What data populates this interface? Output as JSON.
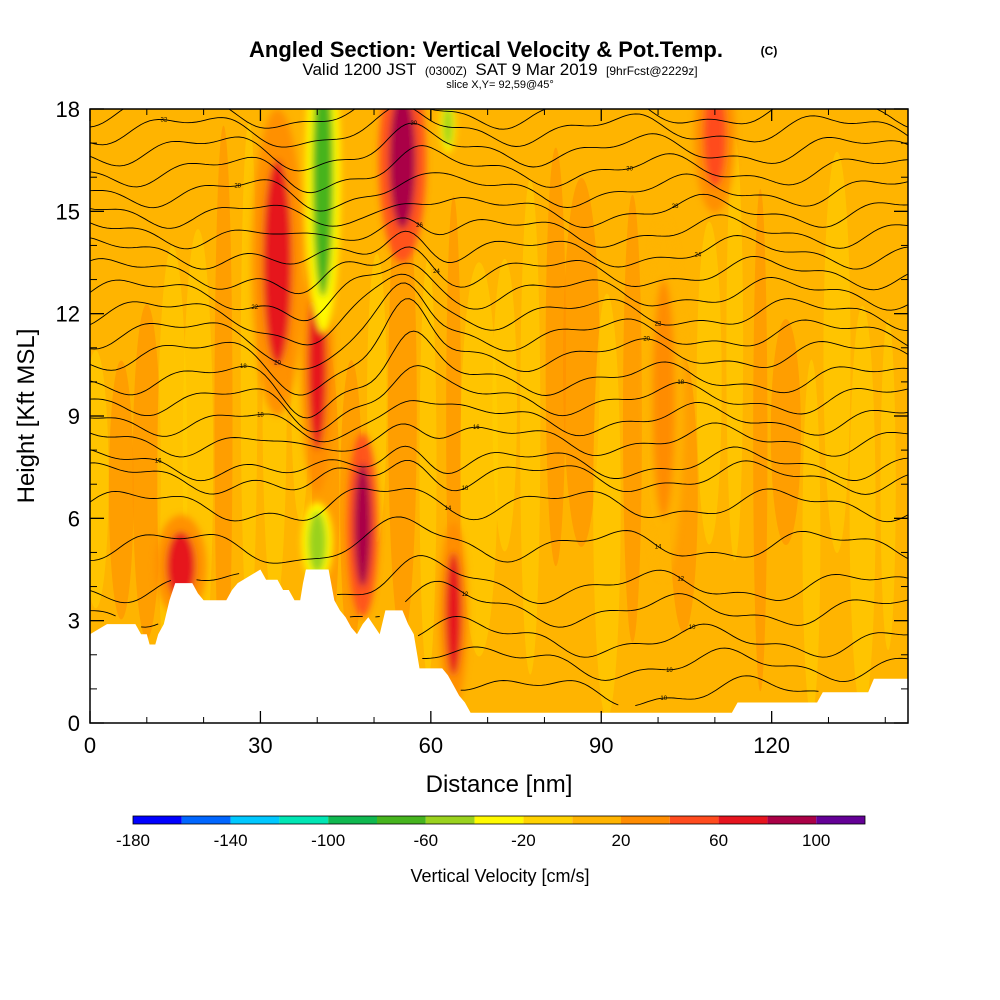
{
  "chart_data": {
    "type": "heatmap",
    "title": "Angled Section: Vertical Velocity & Pot.Temp.",
    "title_units": "(C)",
    "subtitle_parts": [
      "Valid 1200 JST",
      "(0300Z)",
      "SAT 9 Mar 2019",
      "[9hrFcst@2229z]"
    ],
    "slice_label": "slice X,Y= 92,59@45°",
    "xlabel": "Distance [nm]",
    "ylabel": "Height [Kft MSL]",
    "xlim": [
      0,
      144
    ],
    "ylim": [
      0,
      18
    ],
    "x_ticks": [
      "0",
      "30",
      "60",
      "90",
      "120"
    ],
    "x_tick_values": [
      0,
      30,
      60,
      90,
      120
    ],
    "y_ticks": [
      "0",
      "3",
      "6",
      "9",
      "12",
      "15",
      "18"
    ],
    "y_tick_values": [
      0,
      3,
      6,
      9,
      12,
      15,
      18
    ],
    "colorbar": {
      "title": "Vertical Velocity [cm/s]",
      "range": [
        -180,
        120
      ],
      "tick_labels": [
        "-180",
        "-140",
        "-100",
        "-60",
        "-20",
        "20",
        "60",
        "100"
      ],
      "tick_values": [
        -180,
        -140,
        -100,
        -60,
        -20,
        20,
        60,
        100
      ],
      "colors": [
        "#0000ff",
        "#0066ff",
        "#00c8ff",
        "#00e6b4",
        "#10b850",
        "#46b41e",
        "#9ad21e",
        "#fffa00",
        "#ffd200",
        "#ffb400",
        "#ff8c00",
        "#ff4b1e",
        "#e6141e",
        "#aa0046",
        "#640096"
      ]
    },
    "updrafts": [
      {
        "x": 16,
        "z": 4.6,
        "value": 70
      },
      {
        "x": 33,
        "z": 13.5,
        "value": 60
      },
      {
        "x": 40,
        "z": 10.5,
        "value": 75
      },
      {
        "x": 48,
        "z": 5.8,
        "value": 80
      },
      {
        "x": 55,
        "z": 16.5,
        "value": 85
      },
      {
        "x": 64,
        "z": 3.2,
        "value": 60
      },
      {
        "x": 101,
        "z": 9.5,
        "value": 35
      },
      {
        "x": 110,
        "z": 17.2,
        "value": 40
      }
    ],
    "downdrafts": [
      {
        "x": 41,
        "z": 16,
        "value": -70
      },
      {
        "x": 40,
        "z": 5.3,
        "value": -55
      },
      {
        "x": 63,
        "z": 17.5,
        "value": -45
      }
    ],
    "terrain_kft": [
      [
        0,
        2.6
      ],
      [
        3,
        2.9
      ],
      [
        8,
        2.9
      ],
      [
        9,
        2.6
      ],
      [
        10,
        2.6
      ],
      [
        10.5,
        2.3
      ],
      [
        11.5,
        2.3
      ],
      [
        12,
        2.6
      ],
      [
        13,
        2.9
      ],
      [
        14,
        3.6
      ],
      [
        15,
        4.1
      ],
      [
        18,
        4.1
      ],
      [
        19,
        3.8
      ],
      [
        20,
        3.6
      ],
      [
        24,
        3.6
      ],
      [
        25,
        3.9
      ],
      [
        26,
        4.1
      ],
      [
        30,
        4.5
      ],
      [
        31,
        4.2
      ],
      [
        33,
        4.2
      ],
      [
        34,
        3.9
      ],
      [
        35,
        3.9
      ],
      [
        36,
        3.6
      ],
      [
        37,
        3.6
      ],
      [
        37.5,
        4.1
      ],
      [
        38,
        4.5
      ],
      [
        42,
        4.5
      ],
      [
        43,
        3.6
      ],
      [
        44,
        3.3
      ],
      [
        45,
        3.1
      ],
      [
        46,
        2.8
      ],
      [
        47,
        2.6
      ],
      [
        48,
        2.9
      ],
      [
        49,
        3.1
      ],
      [
        51,
        2.6
      ],
      [
        52,
        3.3
      ],
      [
        55,
        3.3
      ],
      [
        56,
        2.9
      ],
      [
        57,
        2.6
      ],
      [
        58,
        1.6
      ],
      [
        62,
        1.6
      ],
      [
        63,
        1.4
      ],
      [
        64,
        1.1
      ],
      [
        65,
        0.8
      ],
      [
        66,
        0.6
      ],
      [
        67,
        0.3
      ],
      [
        85,
        0.3
      ],
      [
        95,
        0.3
      ],
      [
        105,
        0.3
      ],
      [
        113,
        0.3
      ],
      [
        114,
        0.6
      ],
      [
        128,
        0.6
      ],
      [
        129,
        0.9
      ],
      [
        137,
        0.9
      ],
      [
        138,
        1.3
      ],
      [
        144,
        1.3
      ]
    ],
    "theta_contours": [
      {
        "base": 0.9,
        "label": "10",
        "lx": 101
      },
      {
        "base": 1.7,
        "label": "10",
        "lx": 102
      },
      {
        "base": 2.4,
        "label": "10",
        "lx": 106
      },
      {
        "base": 3.3,
        "label": "12",
        "lx": 66
      },
      {
        "base": 4.0,
        "label": "12",
        "lx": 104
      },
      {
        "base": 5.2,
        "label": "14",
        "lx": 100
      },
      {
        "base": 6.4,
        "label": "14",
        "lx": 63
      },
      {
        "base": 7.2,
        "label": "16",
        "lx": 66
      },
      {
        "base": 7.6,
        "label": "16",
        "lx": 12
      },
      {
        "base": 8.3,
        "label": "16",
        "lx": 68
      },
      {
        "base": 8.9,
        "label": "18",
        "lx": 30
      },
      {
        "base": 9.5,
        "label": "18",
        "lx": 104
      },
      {
        "base": 10.1,
        "label": "18",
        "lx": 27
      },
      {
        "base": 10.8,
        "label": "20",
        "lx": 98
      },
      {
        "base": 11.4,
        "label": "20",
        "lx": 33
      },
      {
        "base": 12.0,
        "label": "22",
        "lx": 100
      },
      {
        "base": 12.6,
        "label": "22",
        "lx": 29
      },
      {
        "base": 13.2,
        "label": "24",
        "lx": 61
      },
      {
        "base": 13.8,
        "label": "24",
        "lx": 107
      },
      {
        "base": 14.4,
        "label": "26",
        "lx": 58
      },
      {
        "base": 15.0,
        "label": "28",
        "lx": 103
      },
      {
        "base": 15.6,
        "label": "28",
        "lx": 26
      },
      {
        "base": 16.2,
        "label": "30",
        "lx": 95
      },
      {
        "base": 16.8,
        "label": "30",
        "lx": 57
      },
      {
        "base": 17.4,
        "label": "32",
        "lx": 13
      },
      {
        "base": 17.9,
        "label": "32",
        "lx": 55
      }
    ]
  }
}
